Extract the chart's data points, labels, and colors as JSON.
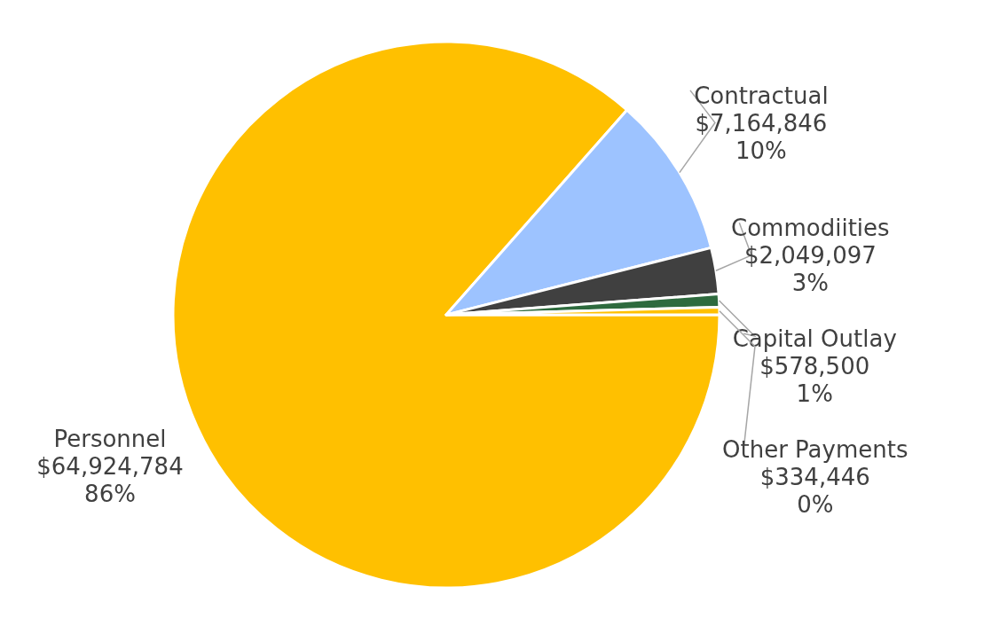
{
  "chart_data": {
    "type": "pie",
    "categories": [
      "Personnel",
      "Contractual",
      "Commodiities",
      "Capital Outlay",
      "Other Payments"
    ],
    "values": [
      64924784,
      7164846,
      2049097,
      578500,
      334446
    ],
    "colors": [
      "#ffc000",
      "#9dc3ff",
      "#404040",
      "#2e6b3e",
      "#ffc000"
    ],
    "value_labels": [
      "$64,924,784\n86%",
      "$7,164,846\n10%",
      "$2,049,097\n3%",
      "$578,500\n1%",
      "$334,446\n0%"
    ]
  }
}
